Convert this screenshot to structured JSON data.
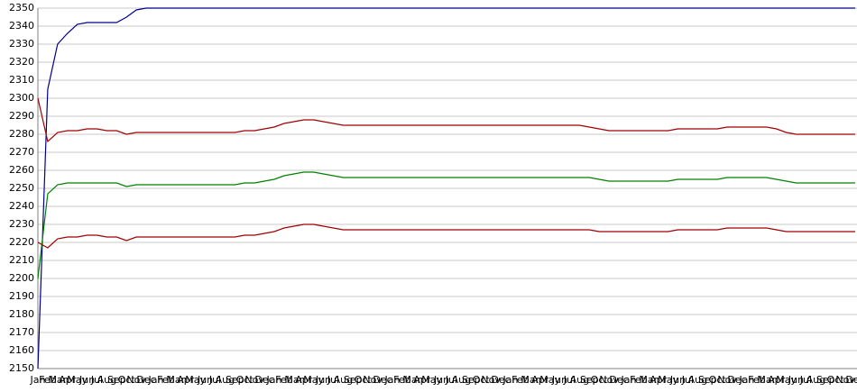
{
  "chart_data": {
    "type": "line",
    "categories": [
      "Jan",
      "Feb",
      "Mar",
      "Apr",
      "May",
      "Jun",
      "Jul",
      "Aug",
      "Sep",
      "Oct",
      "Nov",
      "Dec",
      "Jan",
      "Feb",
      "Mar",
      "Apr",
      "May",
      "Jun",
      "Jul",
      "Aug",
      "Sep",
      "Oct",
      "Nov",
      "Dec",
      "Jan",
      "Feb",
      "Mar",
      "Apr",
      "May",
      "Jun",
      "Jul",
      "Aug",
      "Sep",
      "Oct",
      "Nov",
      "Dec",
      "Jan",
      "Feb",
      "Mar",
      "Apr",
      "May",
      "Jun",
      "Jul",
      "Aug",
      "Sep",
      "Oct",
      "Nov",
      "Dec",
      "Jan",
      "Feb",
      "Mar",
      "Apr",
      "May",
      "Jun",
      "Jul",
      "Aug",
      "Sep",
      "Oct",
      "Nov",
      "Dec",
      "Jan",
      "Feb",
      "Mar",
      "Apr",
      "May",
      "Jun",
      "Jul",
      "Aug",
      "Sep",
      "Oct",
      "Nov",
      "Dec",
      "Jan",
      "Feb",
      "Mar",
      "Apr",
      "May",
      "Jun",
      "Jul",
      "Aug",
      "Sep",
      "Oct",
      "Nov",
      "Dec"
    ],
    "series": [
      {
        "color": "#00008b",
        "values": [
          2150,
          2305,
          2330,
          2336,
          2341,
          2342,
          2342,
          2342,
          2342,
          2345,
          2349,
          2350,
          2350,
          2350,
          2350,
          2350,
          2350,
          2350,
          2350,
          2350,
          2350,
          2350,
          2350,
          2350,
          2350,
          2350,
          2350,
          2350,
          2350,
          2350,
          2350,
          2350,
          2350,
          2350,
          2350,
          2350,
          2350,
          2350,
          2350,
          2350,
          2350,
          2350,
          2350,
          2350,
          2350,
          2350,
          2350,
          2350,
          2350,
          2350,
          2350,
          2350,
          2350,
          2350,
          2350,
          2350,
          2350,
          2350,
          2350,
          2350,
          2350,
          2350,
          2350,
          2350,
          2350,
          2350,
          2350,
          2350,
          2350,
          2350,
          2350,
          2350,
          2350,
          2350,
          2350,
          2350,
          2350,
          2350,
          2350,
          2350,
          2350,
          2350,
          2350,
          2350
        ]
      },
      {
        "color": "#a00000",
        "values": [
          2300,
          2276,
          2281,
          2282,
          2282,
          2283,
          2283,
          2282,
          2282,
          2280,
          2281,
          2281,
          2281,
          2281,
          2281,
          2281,
          2281,
          2281,
          2281,
          2281,
          2281,
          2282,
          2282,
          2283,
          2284,
          2286,
          2287,
          2288,
          2288,
          2287,
          2286,
          2285,
          2285,
          2285,
          2285,
          2285,
          2285,
          2285,
          2285,
          2285,
          2285,
          2285,
          2285,
          2285,
          2285,
          2285,
          2285,
          2285,
          2285,
          2285,
          2285,
          2285,
          2285,
          2285,
          2285,
          2285,
          2284,
          2283,
          2282,
          2282,
          2282,
          2282,
          2282,
          2282,
          2282,
          2283,
          2283,
          2283,
          2283,
          2283,
          2284,
          2284,
          2284,
          2284,
          2284,
          2283,
          2281,
          2280,
          2280,
          2280,
          2280,
          2280,
          2280,
          2280
        ]
      },
      {
        "color": "#008000",
        "values": [
          2200,
          2247,
          2252,
          2253,
          2253,
          2253,
          2253,
          2253,
          2253,
          2251,
          2252,
          2252,
          2252,
          2252,
          2252,
          2252,
          2252,
          2252,
          2252,
          2252,
          2252,
          2253,
          2253,
          2254,
          2255,
          2257,
          2258,
          2259,
          2259,
          2258,
          2257,
          2256,
          2256,
          2256,
          2256,
          2256,
          2256,
          2256,
          2256,
          2256,
          2256,
          2256,
          2256,
          2256,
          2256,
          2256,
          2256,
          2256,
          2256,
          2256,
          2256,
          2256,
          2256,
          2256,
          2256,
          2256,
          2256,
          2255,
          2254,
          2254,
          2254,
          2254,
          2254,
          2254,
          2254,
          2255,
          2255,
          2255,
          2255,
          2255,
          2256,
          2256,
          2256,
          2256,
          2256,
          2255,
          2254,
          2253,
          2253,
          2253,
          2253,
          2253,
          2253,
          2253
        ]
      },
      {
        "color": "#a00000",
        "values": [
          2220,
          2217,
          2222,
          2223,
          2223,
          2224,
          2224,
          2223,
          2223,
          2221,
          2223,
          2223,
          2223,
          2223,
          2223,
          2223,
          2223,
          2223,
          2223,
          2223,
          2223,
          2224,
          2224,
          2225,
          2226,
          2228,
          2229,
          2230,
          2230,
          2229,
          2228,
          2227,
          2227,
          2227,
          2227,
          2227,
          2227,
          2227,
          2227,
          2227,
          2227,
          2227,
          2227,
          2227,
          2227,
          2227,
          2227,
          2227,
          2227,
          2227,
          2227,
          2227,
          2227,
          2227,
          2227,
          2227,
          2227,
          2226,
          2226,
          2226,
          2226,
          2226,
          2226,
          2226,
          2226,
          2227,
          2227,
          2227,
          2227,
          2227,
          2228,
          2228,
          2228,
          2228,
          2228,
          2227,
          2226,
          2226,
          2226,
          2226,
          2226,
          2226,
          2226,
          2226
        ]
      }
    ],
    "ylim": [
      2150,
      2350
    ],
    "yticks": [
      2150,
      2160,
      2170,
      2180,
      2190,
      2200,
      2210,
      2220,
      2230,
      2240,
      2250,
      2260,
      2270,
      2280,
      2290,
      2300,
      2310,
      2320,
      2330,
      2340,
      2350
    ],
    "grid": true
  }
}
